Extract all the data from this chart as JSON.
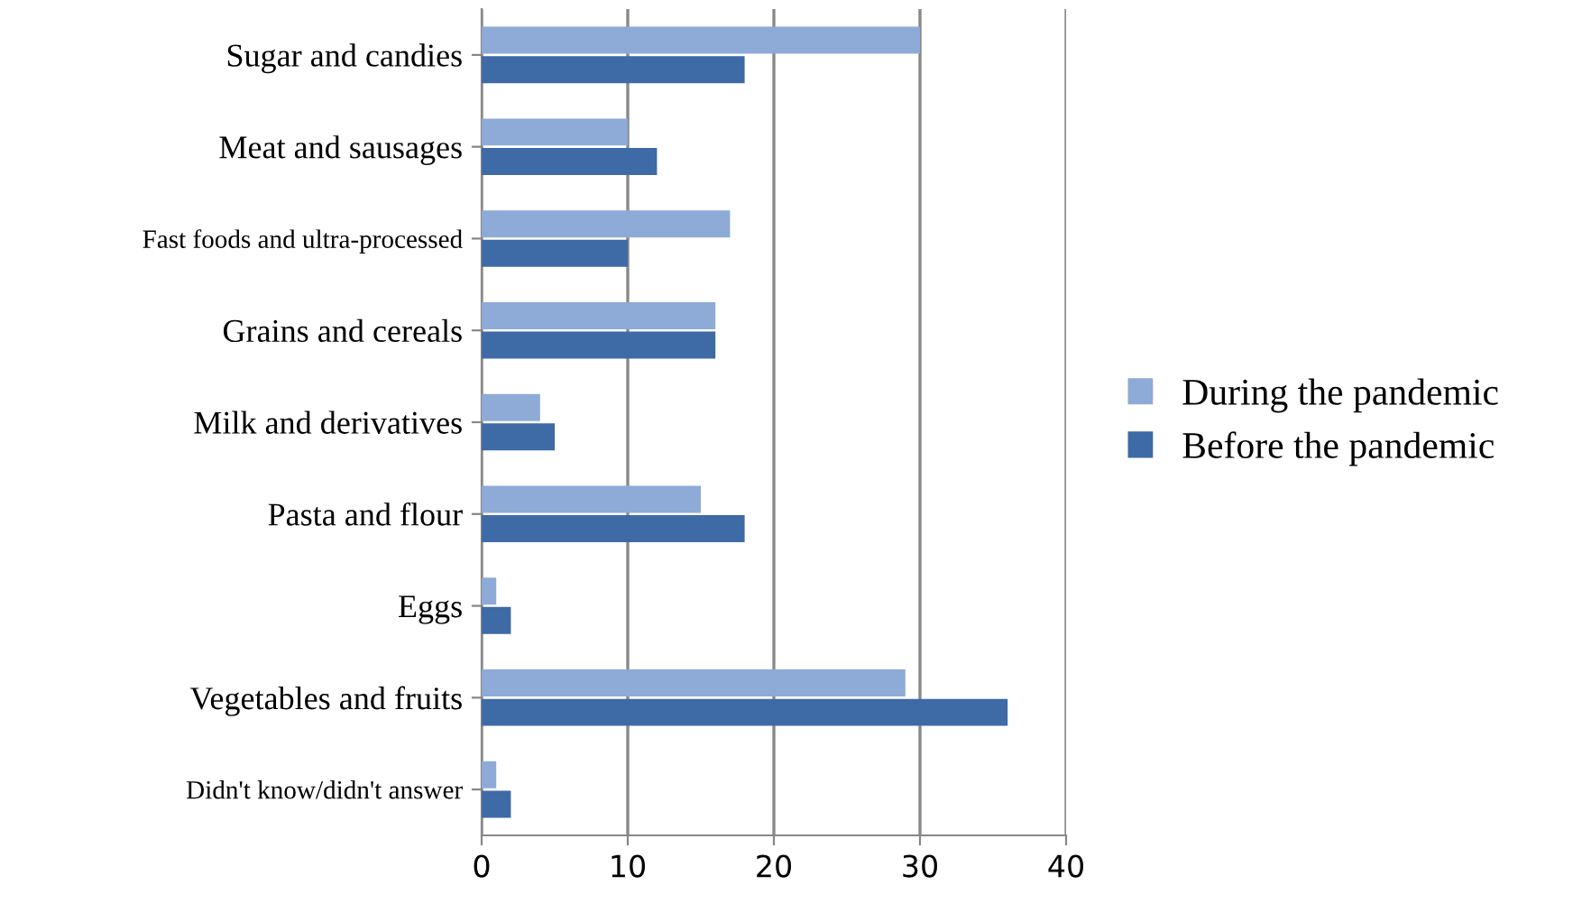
{
  "chart_data": {
    "type": "bar",
    "orientation": "horizontal",
    "categories": [
      "Sugar and candies",
      "Meat and sausages",
      "Fast foods and ultra-processed",
      "Grains and cereals",
      "Milk and derivatives",
      "Pasta and flour",
      "Eggs",
      "Vegetables and fruits",
      "Didn't know/didn't answer"
    ],
    "series": [
      {
        "name": "During the pandemic",
        "color": "#8eaad6",
        "values": [
          30,
          10,
          17,
          16,
          4,
          15,
          1,
          29,
          1
        ]
      },
      {
        "name": "Before the pandemic",
        "color": "#3e6aa6",
        "values": [
          18,
          12,
          10,
          16,
          5,
          18,
          2,
          36,
          2
        ]
      }
    ],
    "xlim": [
      0,
      40
    ],
    "xticks": [
      0,
      10,
      20,
      30,
      40
    ],
    "grid": "x",
    "legend": "right"
  }
}
